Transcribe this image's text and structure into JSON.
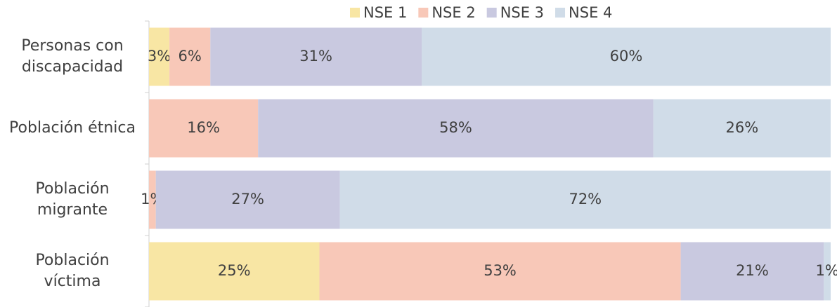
{
  "chart_data": {
    "type": "stacked_barh",
    "categories": [
      "Personas con discapacidad",
      "Población étnica",
      "Población migrante",
      "Población víctima"
    ],
    "series": [
      {
        "name": "NSE 1",
        "color": "#f8e6a4",
        "values": [
          3,
          0,
          0,
          25
        ],
        "value_labels": [
          "3%",
          null,
          null,
          "25%"
        ]
      },
      {
        "name": "NSE 2",
        "color": "#f8c8b8",
        "values": [
          6,
          16,
          1,
          53
        ],
        "value_labels": [
          "6%",
          "16%",
          "1%",
          "53%"
        ]
      },
      {
        "name": "NSE 3",
        "color": "#c9c9e0",
        "values": [
          31,
          58,
          27,
          21
        ],
        "value_labels": [
          "31%",
          "58%",
          "27%",
          "21%"
        ]
      },
      {
        "name": "NSE 4",
        "color": "#d0dce8",
        "values": [
          60,
          26,
          72,
          1
        ],
        "value_labels": [
          "60%",
          "26%",
          "72%",
          "1%"
        ]
      }
    ],
    "xlim": [
      0,
      100
    ],
    "legend": "top"
  }
}
